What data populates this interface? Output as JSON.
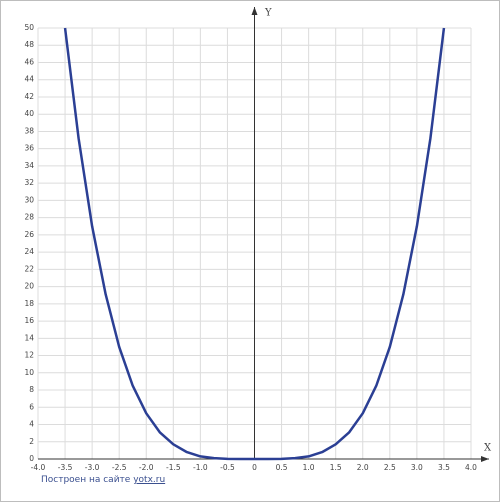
{
  "chart_data": {
    "type": "line",
    "x_label": "X",
    "y_label": "Y",
    "x": [
      -3.5,
      -3.25,
      -3.0,
      -2.75,
      -2.5,
      -2.25,
      -2.0,
      -1.75,
      -1.5,
      -1.25,
      -1.0,
      -0.75,
      -0.5,
      -0.25,
      0,
      0.25,
      0.5,
      0.75,
      1.0,
      1.25,
      1.5,
      1.75,
      2.0,
      2.25,
      2.5,
      2.75,
      3.0,
      3.25,
      3.5
    ],
    "series": [
      {
        "color": "#2b3f94",
        "values": [
          50.0,
          37.2,
          27.0,
          19.1,
          13.0,
          8.5,
          5.3,
          3.1,
          1.7,
          0.8,
          0.3,
          0.1,
          0.02,
          0.0,
          0,
          0.0,
          0.02,
          0.1,
          0.3,
          0.8,
          1.7,
          3.1,
          5.3,
          8.5,
          13.0,
          19.1,
          27.0,
          37.2,
          50.0
        ]
      }
    ],
    "xlim": [
      -4,
      4
    ],
    "ylim": [
      0,
      50
    ],
    "xticks": [
      {
        "value": -4,
        "label": "-4.0"
      },
      {
        "value": -3.5,
        "label": "-3.5"
      },
      {
        "value": -3,
        "label": "-3.0"
      },
      {
        "value": -2.5,
        "label": "-2.5"
      },
      {
        "value": -2,
        "label": "-2.0"
      },
      {
        "value": -1.5,
        "label": "-1.5"
      },
      {
        "value": -1,
        "label": "-1.0"
      },
      -0.5,
      0,
      0.5,
      {
        "value": 1,
        "label": "1.0"
      },
      1.5,
      {
        "value": 2,
        "label": "2.0"
      },
      2.5,
      {
        "value": 3,
        "label": "3.0"
      },
      3.5,
      {
        "value": 4,
        "label": "4.0"
      }
    ],
    "yticks": [
      0,
      2,
      4,
      6,
      8,
      10,
      12,
      14,
      16,
      18,
      20,
      22,
      24,
      26,
      28,
      30,
      32,
      34,
      36,
      38,
      40,
      42,
      44,
      46,
      48,
      50
    ],
    "grid": true
  },
  "footer": {
    "text": "Построен на сайте",
    "link": "yotx.ru"
  }
}
